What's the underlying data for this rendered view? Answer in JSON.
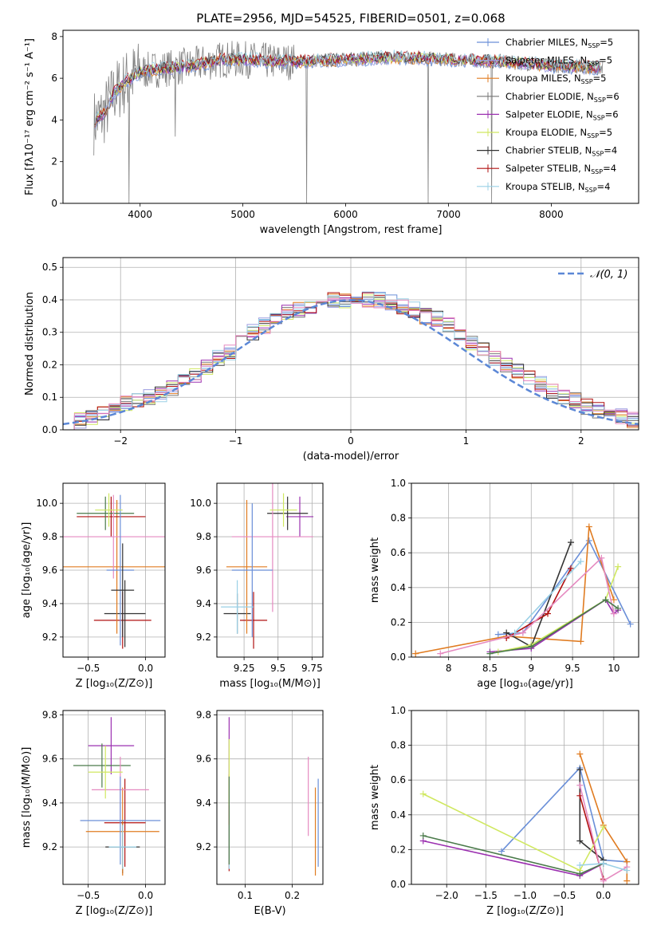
{
  "figure": {
    "title": "PLATE=2956, MJD=54525, FIBERID=0501, z=0.068"
  },
  "chart_data": [
    {
      "id": "spectrum",
      "type": "line",
      "xlabel": "wavelength [Angstrom, rest frame]",
      "ylabel": "Flux [fλ10⁻¹⁷ erg cm⁻² s⁻¹ A⁻¹]",
      "xlim": [
        3250,
        8850
      ],
      "ylim": [
        0,
        8.3
      ],
      "xticks": [
        4000,
        5000,
        6000,
        7000,
        8000
      ],
      "yticks": [
        0,
        2,
        4,
        6,
        8
      ],
      "grid": false,
      "legend_position": "upper-right",
      "data_color": "#808080",
      "series": [
        {
          "name": "Chabrier MILES, N_SSP=5",
          "color": "#6a8fd8"
        },
        {
          "name": "Salpeter MILES, N_SSP=5",
          "color": "#9c9ce0"
        },
        {
          "name": "Kroupa MILES, N_SSP=5",
          "color": "#e07b20"
        },
        {
          "name": "Chabrier ELODIE, N_SSP=6",
          "color": "#777777"
        },
        {
          "name": "Salpeter ELODIE, N_SSP=6",
          "color": "#9b30b0"
        },
        {
          "name": "Kroupa ELODIE, N_SSP=5",
          "color": "#d0e860"
        },
        {
          "name": "Chabrier STELIB, N_SSP=4",
          "color": "#333333"
        },
        {
          "name": "Salpeter STELIB, N_SSP=4",
          "color": "#b01010"
        },
        {
          "name": "Kroupa STELIB, N_SSP=4",
          "color": "#9ad0e6"
        }
      ],
      "continuum": [
        [
          3550,
          3.9
        ],
        [
          3650,
          4.3
        ],
        [
          3750,
          5.3
        ],
        [
          3900,
          6.0
        ],
        [
          4000,
          6.3
        ],
        [
          4100,
          6.4
        ],
        [
          4300,
          6.5
        ],
        [
          4500,
          6.6
        ],
        [
          4800,
          6.9
        ],
        [
          5000,
          6.9
        ],
        [
          5300,
          6.8
        ],
        [
          5600,
          6.8
        ],
        [
          6000,
          6.9
        ],
        [
          6500,
          7.0
        ],
        [
          7000,
          6.9
        ],
        [
          7500,
          6.8
        ],
        [
          8000,
          6.6
        ],
        [
          8500,
          6.5
        ]
      ],
      "spikes": [
        [
          3890,
          0
        ],
        [
          4340,
          3.2
        ],
        [
          5620,
          0
        ],
        [
          6800,
          0
        ],
        [
          7420,
          0
        ]
      ]
    },
    {
      "id": "residuals",
      "type": "line",
      "xlabel": "(data-model)/error",
      "ylabel": "Normed distribution",
      "xlim": [
        -2.5,
        2.5
      ],
      "ylim": [
        0,
        0.53
      ],
      "xticks": [
        -2,
        -1,
        0,
        1,
        2
      ],
      "xticklabels": [
        "−2",
        "−1",
        "0",
        "1",
        "2"
      ],
      "yticks": [
        0.0,
        0.1,
        0.2,
        0.3,
        0.4,
        0.5
      ],
      "grid": true,
      "legend": "𝒩(0, 1)",
      "legend_position": "upper-right",
      "normal_color": "#5b87d6",
      "bin_width": 0.1,
      "histogram_center": [
        0.02,
        0.03,
        0.04,
        0.05,
        0.06,
        0.08,
        0.09,
        0.1,
        0.11,
        0.13,
        0.15,
        0.17,
        0.19,
        0.22,
        0.24,
        0.27,
        0.3,
        0.32,
        0.34,
        0.36,
        0.37,
        0.38,
        0.39,
        0.4,
        0.4,
        0.41,
        0.4,
        0.4,
        0.39,
        0.38,
        0.37,
        0.35,
        0.34,
        0.32,
        0.3,
        0.27,
        0.25,
        0.22,
        0.2,
        0.18,
        0.16,
        0.14,
        0.12,
        0.1,
        0.09,
        0.07,
        0.06,
        0.05,
        0.04,
        0.03
      ]
    },
    {
      "id": "age-vs-Z",
      "type": "scatter",
      "xlabel": "Z [log₁₀(Z/Z⊙)]",
      "ylabel": "age  [log₁₀(age/yr)]",
      "xlim": [
        -0.72,
        0.17
      ],
      "ylim": [
        9.08,
        10.12
      ],
      "xticks": [
        -0.5,
        0.0
      ],
      "xticklabels": [
        "−0.5",
        "0.0"
      ],
      "yticks": [
        9.2,
        9.4,
        9.6,
        9.8,
        10.0
      ],
      "grid": true,
      "points": [
        {
          "x": -0.2,
          "y": 9.3,
          "xerr": 0.25,
          "yerr": 0.17,
          "color": "#b01010"
        },
        {
          "x": -0.18,
          "y": 9.34,
          "xerr": 0.18,
          "yerr": 0.2,
          "color": "#333333"
        },
        {
          "x": -0.25,
          "y": 9.62,
          "xerr": 0.52,
          "yerr": 0.4,
          "color": "#e07b20"
        },
        {
          "x": -0.3,
          "y": 9.92,
          "xerr": 0.3,
          "yerr": 0.12,
          "color": "#b01010"
        },
        {
          "x": -0.35,
          "y": 9.94,
          "xerr": 0.25,
          "yerr": 0.1,
          "color": "#4a7a4a"
        },
        {
          "x": -0.28,
          "y": 9.8,
          "xerr": 0.45,
          "yerr": 0.25,
          "color": "#e58ac0"
        },
        {
          "x": -0.22,
          "y": 9.6,
          "xerr": 0.12,
          "yerr": 0.45,
          "color": "#6a8fd8"
        },
        {
          "x": -0.32,
          "y": 9.96,
          "xerr": 0.12,
          "yerr": 0.1,
          "color": "#d0e860"
        },
        {
          "x": -0.2,
          "y": 9.48,
          "xerr": 0.1,
          "yerr": 0.28,
          "color": "#333333"
        }
      ]
    },
    {
      "id": "age-vs-mass",
      "type": "scatter",
      "xlabel": "mass [log₁₀(M/M⊙)]",
      "xlim": [
        9.05,
        9.83
      ],
      "ylim": [
        9.08,
        10.12
      ],
      "xticks": [
        9.25,
        9.5,
        9.75
      ],
      "yticks": [
        9.2,
        9.4,
        9.6,
        9.8,
        10.0
      ],
      "grid": true,
      "points": [
        {
          "x": 9.32,
          "y": 9.3,
          "xerr": 0.1,
          "yerr": 0.17,
          "color": "#b01010"
        },
        {
          "x": 9.2,
          "y": 9.34,
          "xerr": 0.1,
          "yerr": 0.12,
          "color": "#333333"
        },
        {
          "x": 9.27,
          "y": 9.62,
          "xerr": 0.15,
          "yerr": 0.4,
          "color": "#e07b20"
        },
        {
          "x": 9.66,
          "y": 9.92,
          "xerr": 0.1,
          "yerr": 0.12,
          "color": "#9b30b0"
        },
        {
          "x": 9.57,
          "y": 9.94,
          "xerr": 0.15,
          "yerr": 0.1,
          "color": "#333333"
        },
        {
          "x": 9.46,
          "y": 9.8,
          "xerr": 0.3,
          "yerr": 0.45,
          "color": "#e58ac0"
        },
        {
          "x": 9.31,
          "y": 9.6,
          "xerr": 0.15,
          "yerr": 0.4,
          "color": "#6a8fd8"
        },
        {
          "x": 9.54,
          "y": 9.96,
          "xerr": 0.1,
          "yerr": 0.1,
          "color": "#d0e860"
        },
        {
          "x": 9.2,
          "y": 9.38,
          "xerr": 0.12,
          "yerr": 0.16,
          "color": "#9ad0e6"
        }
      ]
    },
    {
      "id": "weight-vs-age",
      "type": "line",
      "xlabel": "age  [log₁₀(age/yr)]",
      "ylabel": "mass weight",
      "xlim": [
        7.55,
        10.3
      ],
      "ylim": [
        0,
        1.0
      ],
      "xticks": [
        8.0,
        8.5,
        9.0,
        9.5,
        10.0
      ],
      "yticks": [
        0.0,
        0.2,
        0.4,
        0.6,
        0.8,
        1.0
      ],
      "grid": true,
      "series": [
        {
          "color": "#6a8fd8",
          "points": [
            [
              8.6,
              0.13
            ],
            [
              8.9,
              0.14
            ],
            [
              9.7,
              0.67
            ],
            [
              10.2,
              0.19
            ]
          ]
        },
        {
          "color": "#e07b20",
          "points": [
            [
              7.6,
              0.02
            ],
            [
              8.7,
              0.12
            ],
            [
              9.6,
              0.09
            ],
            [
              9.7,
              0.75
            ],
            [
              10.0,
              0.33
            ]
          ]
        },
        {
          "color": "#333333",
          "points": [
            [
              8.7,
              0.14
            ],
            [
              9.0,
              0.06
            ],
            [
              9.48,
              0.66
            ]
          ]
        },
        {
          "color": "#b01010",
          "points": [
            [
              8.7,
              0.11
            ],
            [
              9.2,
              0.25
            ],
            [
              9.48,
              0.51
            ]
          ]
        },
        {
          "color": "#9b30b0",
          "points": [
            [
              8.5,
              0.03
            ],
            [
              9.0,
              0.05
            ],
            [
              9.9,
              0.33
            ],
            [
              10.0,
              0.25
            ],
            [
              10.05,
              0.27
            ]
          ]
        },
        {
          "color": "#d0e860",
          "points": [
            [
              8.6,
              0.03
            ],
            [
              9.0,
              0.07
            ],
            [
              9.9,
              0.33
            ],
            [
              10.05,
              0.52
            ]
          ]
        },
        {
          "color": "#e58ac0",
          "points": [
            [
              7.9,
              0.02
            ],
            [
              8.9,
              0.14
            ],
            [
              9.85,
              0.57
            ],
            [
              10.0,
              0.25
            ]
          ]
        },
        {
          "color": "#4a7a4a",
          "points": [
            [
              8.5,
              0.02
            ],
            [
              9.0,
              0.06
            ],
            [
              9.9,
              0.33
            ],
            [
              10.05,
              0.28
            ]
          ]
        },
        {
          "color": "#9ad0e6",
          "points": [
            [
              8.8,
              0.14
            ],
            [
              9.6,
              0.55
            ]
          ]
        }
      ]
    },
    {
      "id": "mass-vs-Z",
      "type": "scatter",
      "xlabel": "Z [log₁₀(Z/Z⊙)]",
      "ylabel": "mass [log₁₀(M/M⊙)]",
      "xlim": [
        -0.72,
        0.17
      ],
      "ylim": [
        9.03,
        9.82
      ],
      "xticks": [
        -0.5,
        0.0
      ],
      "xticklabels": [
        "−0.5",
        "0.0"
      ],
      "yticks": [
        9.2,
        9.4,
        9.6,
        9.8
      ],
      "grid": true,
      "points": [
        {
          "x": -0.18,
          "y": 9.31,
          "xerr": 0.18,
          "yerr": 0.2,
          "color": "#b01010"
        },
        {
          "x": -0.2,
          "y": 9.2,
          "xerr": 0.15,
          "yerr": 0.12,
          "color": "#333333"
        },
        {
          "x": -0.2,
          "y": 9.27,
          "xerr": 0.32,
          "yerr": 0.2,
          "color": "#e07b20"
        },
        {
          "x": -0.3,
          "y": 9.66,
          "xerr": 0.2,
          "yerr": 0.13,
          "color": "#9b30b0"
        },
        {
          "x": -0.38,
          "y": 9.57,
          "xerr": 0.25,
          "yerr": 0.1,
          "color": "#4a7a4a"
        },
        {
          "x": -0.22,
          "y": 9.46,
          "xerr": 0.25,
          "yerr": 0.15,
          "color": "#e58ac0"
        },
        {
          "x": -0.22,
          "y": 9.32,
          "xerr": 0.35,
          "yerr": 0.2,
          "color": "#6a8fd8"
        },
        {
          "x": -0.35,
          "y": 9.54,
          "xerr": 0.15,
          "yerr": 0.12,
          "color": "#d0e860"
        },
        {
          "x": -0.2,
          "y": 9.2,
          "xerr": 0.12,
          "yerr": 0.1,
          "color": "#9ad0e6"
        }
      ]
    },
    {
      "id": "mass-vs-EBV",
      "type": "scatter",
      "xlabel": "E(B-V)",
      "xlim": [
        0.04,
        0.265
      ],
      "ylim": [
        9.03,
        9.82
      ],
      "xticks": [
        0.1,
        0.2
      ],
      "yticks": [
        9.2,
        9.4,
        9.6,
        9.8
      ],
      "grid": true,
      "points": [
        {
          "x": 0.066,
          "y": 9.31,
          "yerr": 0.22,
          "color": "#b01010"
        },
        {
          "x": 0.066,
          "y": 9.66,
          "yerr": 0.13,
          "color": "#9b30b0"
        },
        {
          "x": 0.066,
          "y": 9.54,
          "yerr": 0.15,
          "color": "#d0e860"
        },
        {
          "x": 0.066,
          "y": 9.2,
          "yerr": 0.1,
          "color": "#9ad0e6"
        },
        {
          "x": 0.066,
          "y": 9.32,
          "yerr": 0.2,
          "color": "#4a7a4a"
        },
        {
          "x": 0.234,
          "y": 9.43,
          "yerr": 0.18,
          "color": "#e58ac0"
        },
        {
          "x": 0.249,
          "y": 9.27,
          "yerr": 0.2,
          "color": "#e07b20"
        },
        {
          "x": 0.255,
          "y": 9.31,
          "yerr": 0.2,
          "color": "#6a8fd8"
        }
      ]
    },
    {
      "id": "weight-vs-Z",
      "type": "line",
      "xlabel": "Z [log₁₀(Z/Z⊙)]",
      "ylabel": "mass weight",
      "xlim": [
        -2.45,
        0.45
      ],
      "ylim": [
        0,
        1.0
      ],
      "xticks": [
        -2.0,
        -1.5,
        -1.0,
        -0.5,
        0.0
      ],
      "xticklabels": [
        "−2.0",
        "−1.5",
        "−1.0",
        "−0.5",
        "0.0"
      ],
      "yticks": [
        0.0,
        0.2,
        0.4,
        0.6,
        0.8,
        1.0
      ],
      "grid": true,
      "series": [
        {
          "color": "#6a8fd8",
          "points": [
            [
              -1.3,
              0.19
            ],
            [
              -0.3,
              0.67
            ],
            [
              0.0,
              0.14
            ],
            [
              0.3,
              0.13
            ]
          ]
        },
        {
          "color": "#e07b20",
          "points": [
            [
              -0.3,
              0.75
            ],
            [
              0.0,
              0.34
            ],
            [
              0.3,
              0.13
            ],
            [
              0.3,
              0.02
            ]
          ]
        },
        {
          "color": "#333333",
          "points": [
            [
              -0.3,
              0.66
            ],
            [
              -0.3,
              0.25
            ],
            [
              0.0,
              0.14
            ]
          ]
        },
        {
          "color": "#b01010",
          "points": [
            [
              -0.3,
              0.51
            ],
            [
              0.0,
              0.03
            ]
          ]
        },
        {
          "color": "#9b30b0",
          "points": [
            [
              -2.3,
              0.25
            ],
            [
              -0.3,
              0.05
            ],
            [
              0.0,
              0.12
            ]
          ]
        },
        {
          "color": "#d0e860",
          "points": [
            [
              -2.3,
              0.52
            ],
            [
              -0.3,
              0.08
            ],
            [
              0.0,
              0.33
            ]
          ]
        },
        {
          "color": "#e58ac0",
          "points": [
            [
              -0.3,
              0.57
            ],
            [
              0.0,
              0.02
            ],
            [
              0.3,
              0.1
            ]
          ]
        },
        {
          "color": "#4a7a4a",
          "points": [
            [
              -2.3,
              0.28
            ],
            [
              -0.3,
              0.06
            ],
            [
              0.0,
              0.12
            ]
          ]
        },
        {
          "color": "#9ad0e6",
          "points": [
            [
              -0.3,
              0.11
            ],
            [
              0.0,
              0.12
            ],
            [
              0.3,
              0.08
            ]
          ]
        }
      ]
    }
  ]
}
